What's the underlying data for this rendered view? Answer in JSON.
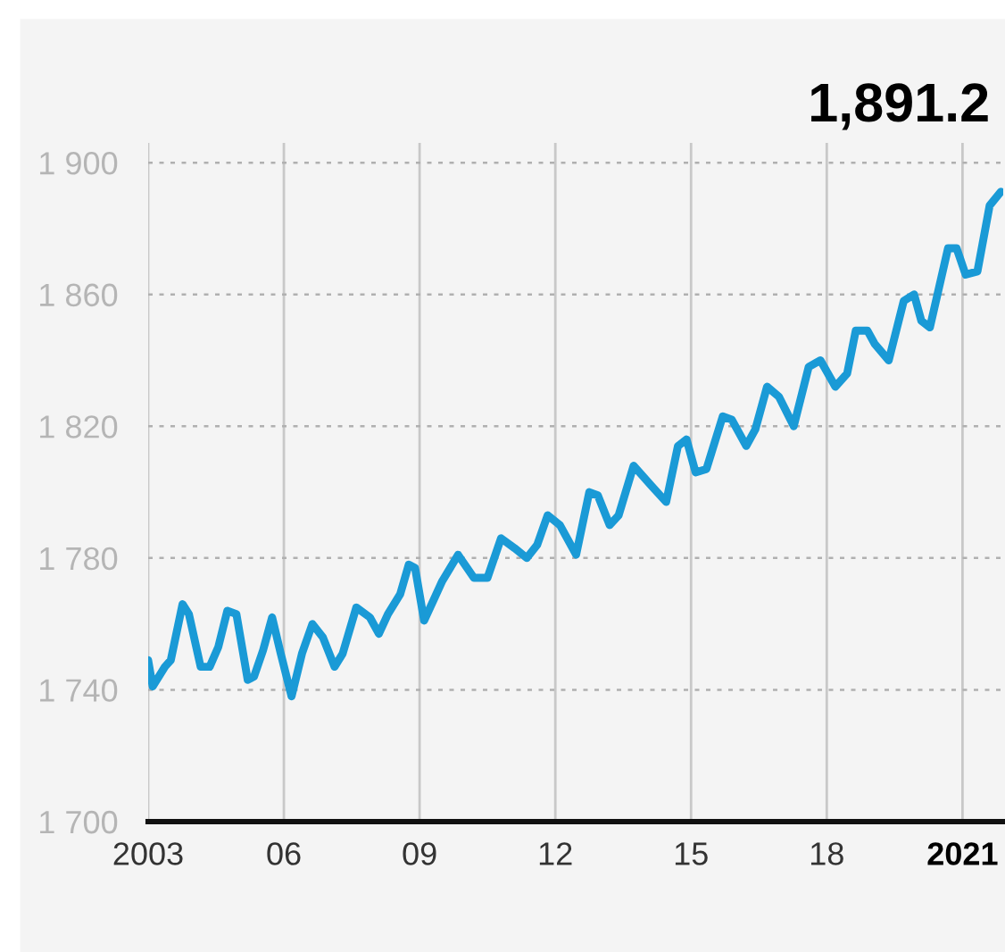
{
  "chart_data": {
    "type": "line",
    "annotations": [
      "1,891.2"
    ],
    "x": [
      2003.0,
      2003.1,
      2003.37,
      2003.5,
      2003.76,
      2003.9,
      2004.16,
      2004.36,
      2004.55,
      2004.75,
      2004.95,
      2005.2,
      2005.34,
      2005.54,
      2005.74,
      2005.93,
      2006.17,
      2006.4,
      2006.63,
      2006.86,
      2007.12,
      2007.3,
      2007.6,
      2007.9,
      2008.1,
      2008.3,
      2008.57,
      2008.76,
      2008.9,
      2009.1,
      2009.3,
      2009.5,
      2009.85,
      2010.2,
      2010.5,
      2010.8,
      2011.1,
      2011.37,
      2011.6,
      2011.83,
      2012.1,
      2012.46,
      2012.75,
      2012.94,
      2013.2,
      2013.4,
      2013.73,
      2014.12,
      2014.45,
      2014.71,
      2014.9,
      2015.1,
      2015.34,
      2015.7,
      2015.9,
      2016.22,
      2016.42,
      2016.68,
      2016.94,
      2017.27,
      2017.6,
      2017.86,
      2018.19,
      2018.45,
      2018.64,
      2018.9,
      2019.06,
      2019.37,
      2019.7,
      2019.93,
      2020.09,
      2020.28,
      2020.68,
      2020.87,
      2021.07,
      2021.33,
      2021.6,
      2021.85
    ],
    "series": [
      {
        "color": "#1a9ad6",
        "values": [
          1749,
          1741,
          1747,
          1749,
          1766,
          1763,
          1747,
          1747,
          1753,
          1764,
          1763,
          1743,
          1744,
          1752,
          1762,
          1751,
          1738,
          1751,
          1760,
          1756,
          1747,
          1751,
          1765,
          1762,
          1757,
          1763,
          1769,
          1778,
          1777,
          1761,
          1767,
          1773,
          1781,
          1774,
          1774,
          1786,
          1783,
          1780,
          1784,
          1793,
          1790,
          1781,
          1800,
          1799,
          1790,
          1793,
          1808,
          1802,
          1797,
          1814,
          1816,
          1806,
          1807,
          1823,
          1822,
          1814,
          1819,
          1832,
          1829,
          1820,
          1838,
          1840,
          1832,
          1836,
          1849,
          1849,
          1845,
          1840,
          1858,
          1860,
          1852,
          1850,
          1874,
          1874,
          1866,
          1867,
          1887,
          1891.2
        ]
      }
    ],
    "xlim": [
      2003,
      2021.9
    ],
    "ylim": [
      1700,
      1906
    ],
    "xticks": [
      2003,
      {
        "value": 2006,
        "label": "06"
      },
      {
        "value": 2009,
        "label": "09"
      },
      {
        "value": 2012,
        "label": "12"
      },
      {
        "value": 2015,
        "label": "15"
      },
      {
        "value": 2018,
        "label": "18"
      },
      2021
    ],
    "yticks": [
      {
        "value": 1700,
        "label": "1 700"
      },
      {
        "value": 1740,
        "label": "1 740"
      },
      {
        "value": 1780,
        "label": "1 780"
      },
      {
        "value": 1820,
        "label": "1 820"
      },
      {
        "value": 1860,
        "label": "1 860"
      },
      {
        "value": 1900,
        "label": "1 900"
      }
    ],
    "grid": true,
    "marker": "none",
    "line_style": "solid",
    "legend": false
  }
}
